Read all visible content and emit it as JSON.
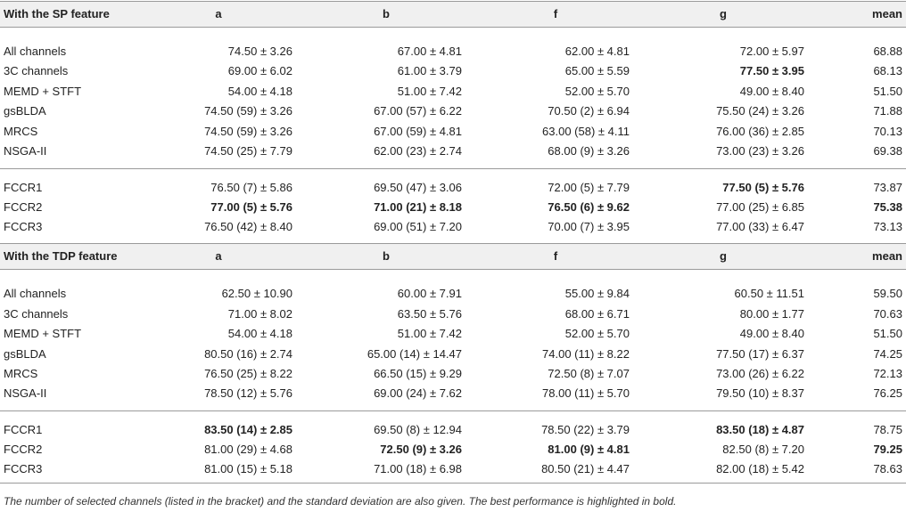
{
  "sections": [
    {
      "title": "With the SP feature",
      "columns": [
        "a",
        "b",
        "f",
        "g",
        "mean"
      ],
      "rows": [
        {
          "label": "All channels",
          "cells": [
            "74.50 ± 3.26",
            "67.00 ± 4.81",
            "62.00 ± 4.81",
            "72.00 ± 5.97",
            "68.88"
          ],
          "bold": [
            false,
            false,
            false,
            false,
            false
          ]
        },
        {
          "label": "3C channels",
          "cells": [
            "69.00 ± 6.02",
            "61.00 ± 3.79",
            "65.00 ± 5.59",
            "77.50 ± 3.95",
            "68.13"
          ],
          "bold": [
            false,
            false,
            false,
            true,
            false
          ]
        },
        {
          "label": "MEMD + STFT",
          "cells": [
            "54.00 ± 4.18",
            "51.00 ± 7.42",
            "52.00 ± 5.70",
            "49.00 ± 8.40",
            "51.50"
          ],
          "bold": [
            false,
            false,
            false,
            false,
            false
          ]
        },
        {
          "label": "gsBLDA",
          "cells": [
            "74.50 (59) ± 3.26",
            "67.00 (57) ± 6.22",
            "70.50 (2) ± 6.94",
            "75.50 (24) ± 3.26",
            "71.88"
          ],
          "bold": [
            false,
            false,
            false,
            false,
            false
          ]
        },
        {
          "label": "MRCS",
          "cells": [
            "74.50 (59) ± 3.26",
            "67.00 (59) ± 4.81",
            "63.00 (58) ± 4.11",
            "76.00 (36) ± 2.85",
            "70.13"
          ],
          "bold": [
            false,
            false,
            false,
            false,
            false
          ]
        },
        {
          "label": "NSGA-II",
          "cells": [
            "74.50 (25) ± 7.79",
            "62.00 (23) ± 2.74",
            "68.00 (9) ± 3.26",
            "73.00 (23) ± 3.26",
            "69.38"
          ],
          "bold": [
            false,
            false,
            false,
            false,
            false
          ]
        },
        {
          "label": "FCCR1",
          "cells": [
            "76.50 (7) ± 5.86",
            "69.50 (47) ± 3.06",
            "72.00 (5) ± 7.79",
            "77.50 (5) ± 5.76",
            "73.87"
          ],
          "bold": [
            false,
            false,
            false,
            true,
            false
          ]
        },
        {
          "label": "FCCR2",
          "cells": [
            "77.00 (5) ± 5.76",
            "71.00 (21) ± 8.18",
            "76.50 (6) ± 9.62",
            "77.00 (25) ± 6.85",
            "75.38"
          ],
          "bold": [
            true,
            true,
            true,
            false,
            true
          ]
        },
        {
          "label": "FCCR3",
          "cells": [
            "76.50 (42) ± 8.40",
            "69.00 (51) ± 7.20",
            "70.00 (7) ± 3.95",
            "77.00 (33) ± 6.47",
            "73.13"
          ],
          "bold": [
            false,
            false,
            false,
            false,
            false
          ]
        }
      ]
    },
    {
      "title": "With the TDP feature",
      "columns": [
        "a",
        "b",
        "f",
        "g",
        "mean"
      ],
      "rows": [
        {
          "label": "All channels",
          "cells": [
            "62.50 ± 10.90",
            "60.00 ± 7.91",
            "55.00 ± 9.84",
            "60.50 ± 11.51",
            "59.50"
          ],
          "bold": [
            false,
            false,
            false,
            false,
            false
          ]
        },
        {
          "label": "3C channels",
          "cells": [
            "71.00 ± 8.02",
            "63.50 ± 5.76",
            "68.00 ± 6.71",
            "80.00 ± 1.77",
            "70.63"
          ],
          "bold": [
            false,
            false,
            false,
            false,
            false
          ]
        },
        {
          "label": "MEMD + STFT",
          "cells": [
            "54.00 ± 4.18",
            "51.00 ± 7.42",
            "52.00 ± 5.70",
            "49.00 ± 8.40",
            "51.50"
          ],
          "bold": [
            false,
            false,
            false,
            false,
            false
          ]
        },
        {
          "label": "gsBLDA",
          "cells": [
            "80.50 (16) ± 2.74",
            "65.00 (14) ± 14.47",
            "74.00 (11) ± 8.22",
            "77.50 (17) ± 6.37",
            "74.25"
          ],
          "bold": [
            false,
            false,
            false,
            false,
            false
          ]
        },
        {
          "label": "MRCS",
          "cells": [
            "76.50 (25) ± 8.22",
            "66.50 (15) ± 9.29",
            "72.50 (8) ± 7.07",
            "73.00 (26) ± 6.22",
            "72.13"
          ],
          "bold": [
            false,
            false,
            false,
            false,
            false
          ]
        },
        {
          "label": "NSGA-II",
          "cells": [
            "78.50 (12) ± 5.76",
            "69.00 (24) ± 7.62",
            "78.00 (11) ± 5.70",
            "79.50 (10) ± 8.37",
            "76.25"
          ],
          "bold": [
            false,
            false,
            false,
            false,
            false
          ]
        },
        {
          "label": "FCCR1",
          "cells": [
            "83.50 (14) ± 2.85",
            "69.50 (8) ± 12.94",
            "78.50 (22) ± 3.79",
            "83.50 (18) ± 4.87",
            "78.75"
          ],
          "bold": [
            true,
            false,
            false,
            true,
            false
          ]
        },
        {
          "label": "FCCR2",
          "cells": [
            "81.00 (29) ± 4.68",
            "72.50 (9) ± 3.26",
            "81.00 (9) ± 4.81",
            "82.50 (8) ± 7.20",
            "79.25"
          ],
          "bold": [
            false,
            true,
            true,
            false,
            true
          ]
        },
        {
          "label": "FCCR3",
          "cells": [
            "81.00 (15) ± 5.18",
            "71.00 (18) ± 6.98",
            "80.50 (21) ± 4.47",
            "82.00 (18) ± 5.42",
            "78.63"
          ],
          "bold": [
            false,
            false,
            false,
            false,
            false
          ]
        }
      ]
    }
  ],
  "footnote": "The number of selected channels (listed in the bracket) and the standard deviation are also given. The best performance is highlighted in bold."
}
